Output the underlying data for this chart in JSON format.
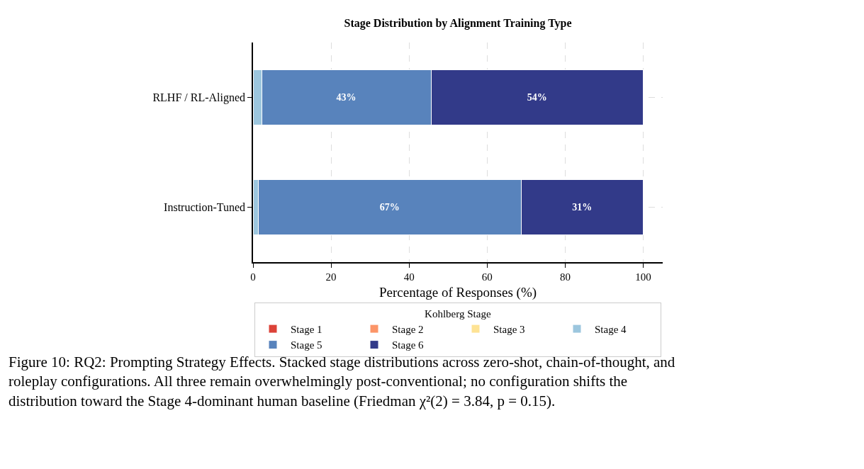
{
  "chart_data": {
    "type": "bar",
    "orientation": "horizontal",
    "stacked": true,
    "title": "Stage Distribution by Alignment Training Type",
    "xlabel": "Percentage of Responses (%)",
    "legend_title": "Kohlberg Stage",
    "legend": "bottom",
    "grid": true,
    "categories": [
      "RLHF / RL-Aligned",
      "Instruction-Tuned"
    ],
    "xlim": [
      0,
      105
    ],
    "xticks": [
      0,
      20,
      40,
      60,
      80,
      100
    ],
    "series": [
      {
        "name": "Stage 1",
        "color": "#dc4238",
        "values": [
          0,
          0
        ]
      },
      {
        "name": "Stage 2",
        "color": "#fc9568",
        "values": [
          0,
          0
        ]
      },
      {
        "name": "Stage 3",
        "color": "#fee394",
        "values": [
          0,
          0
        ]
      },
      {
        "name": "Stage 4",
        "color": "#9cc6de",
        "values": [
          2.2,
          1.3
        ]
      },
      {
        "name": "Stage 5",
        "color": "#5883bc",
        "values": [
          43.4,
          67.4
        ],
        "value_labels": [
          "43%",
          "67%"
        ]
      },
      {
        "name": "Stage 6",
        "color": "#323a89",
        "values": [
          54.4,
          31.3
        ],
        "value_labels": [
          "54%",
          "31%"
        ]
      }
    ],
    "annotations": [
      "Figure 10: RQ2: Prompting Strategy Effects. Stacked stage distributions across zero-shot, chain-of-thought, and roleplay configurations. All three remain overwhelmingly post-conventional; no configuration shifts the distribution toward the Stage 4-dominant human baseline (Friedman χ²(2) = 3.84, p = 0.15)."
    ]
  }
}
